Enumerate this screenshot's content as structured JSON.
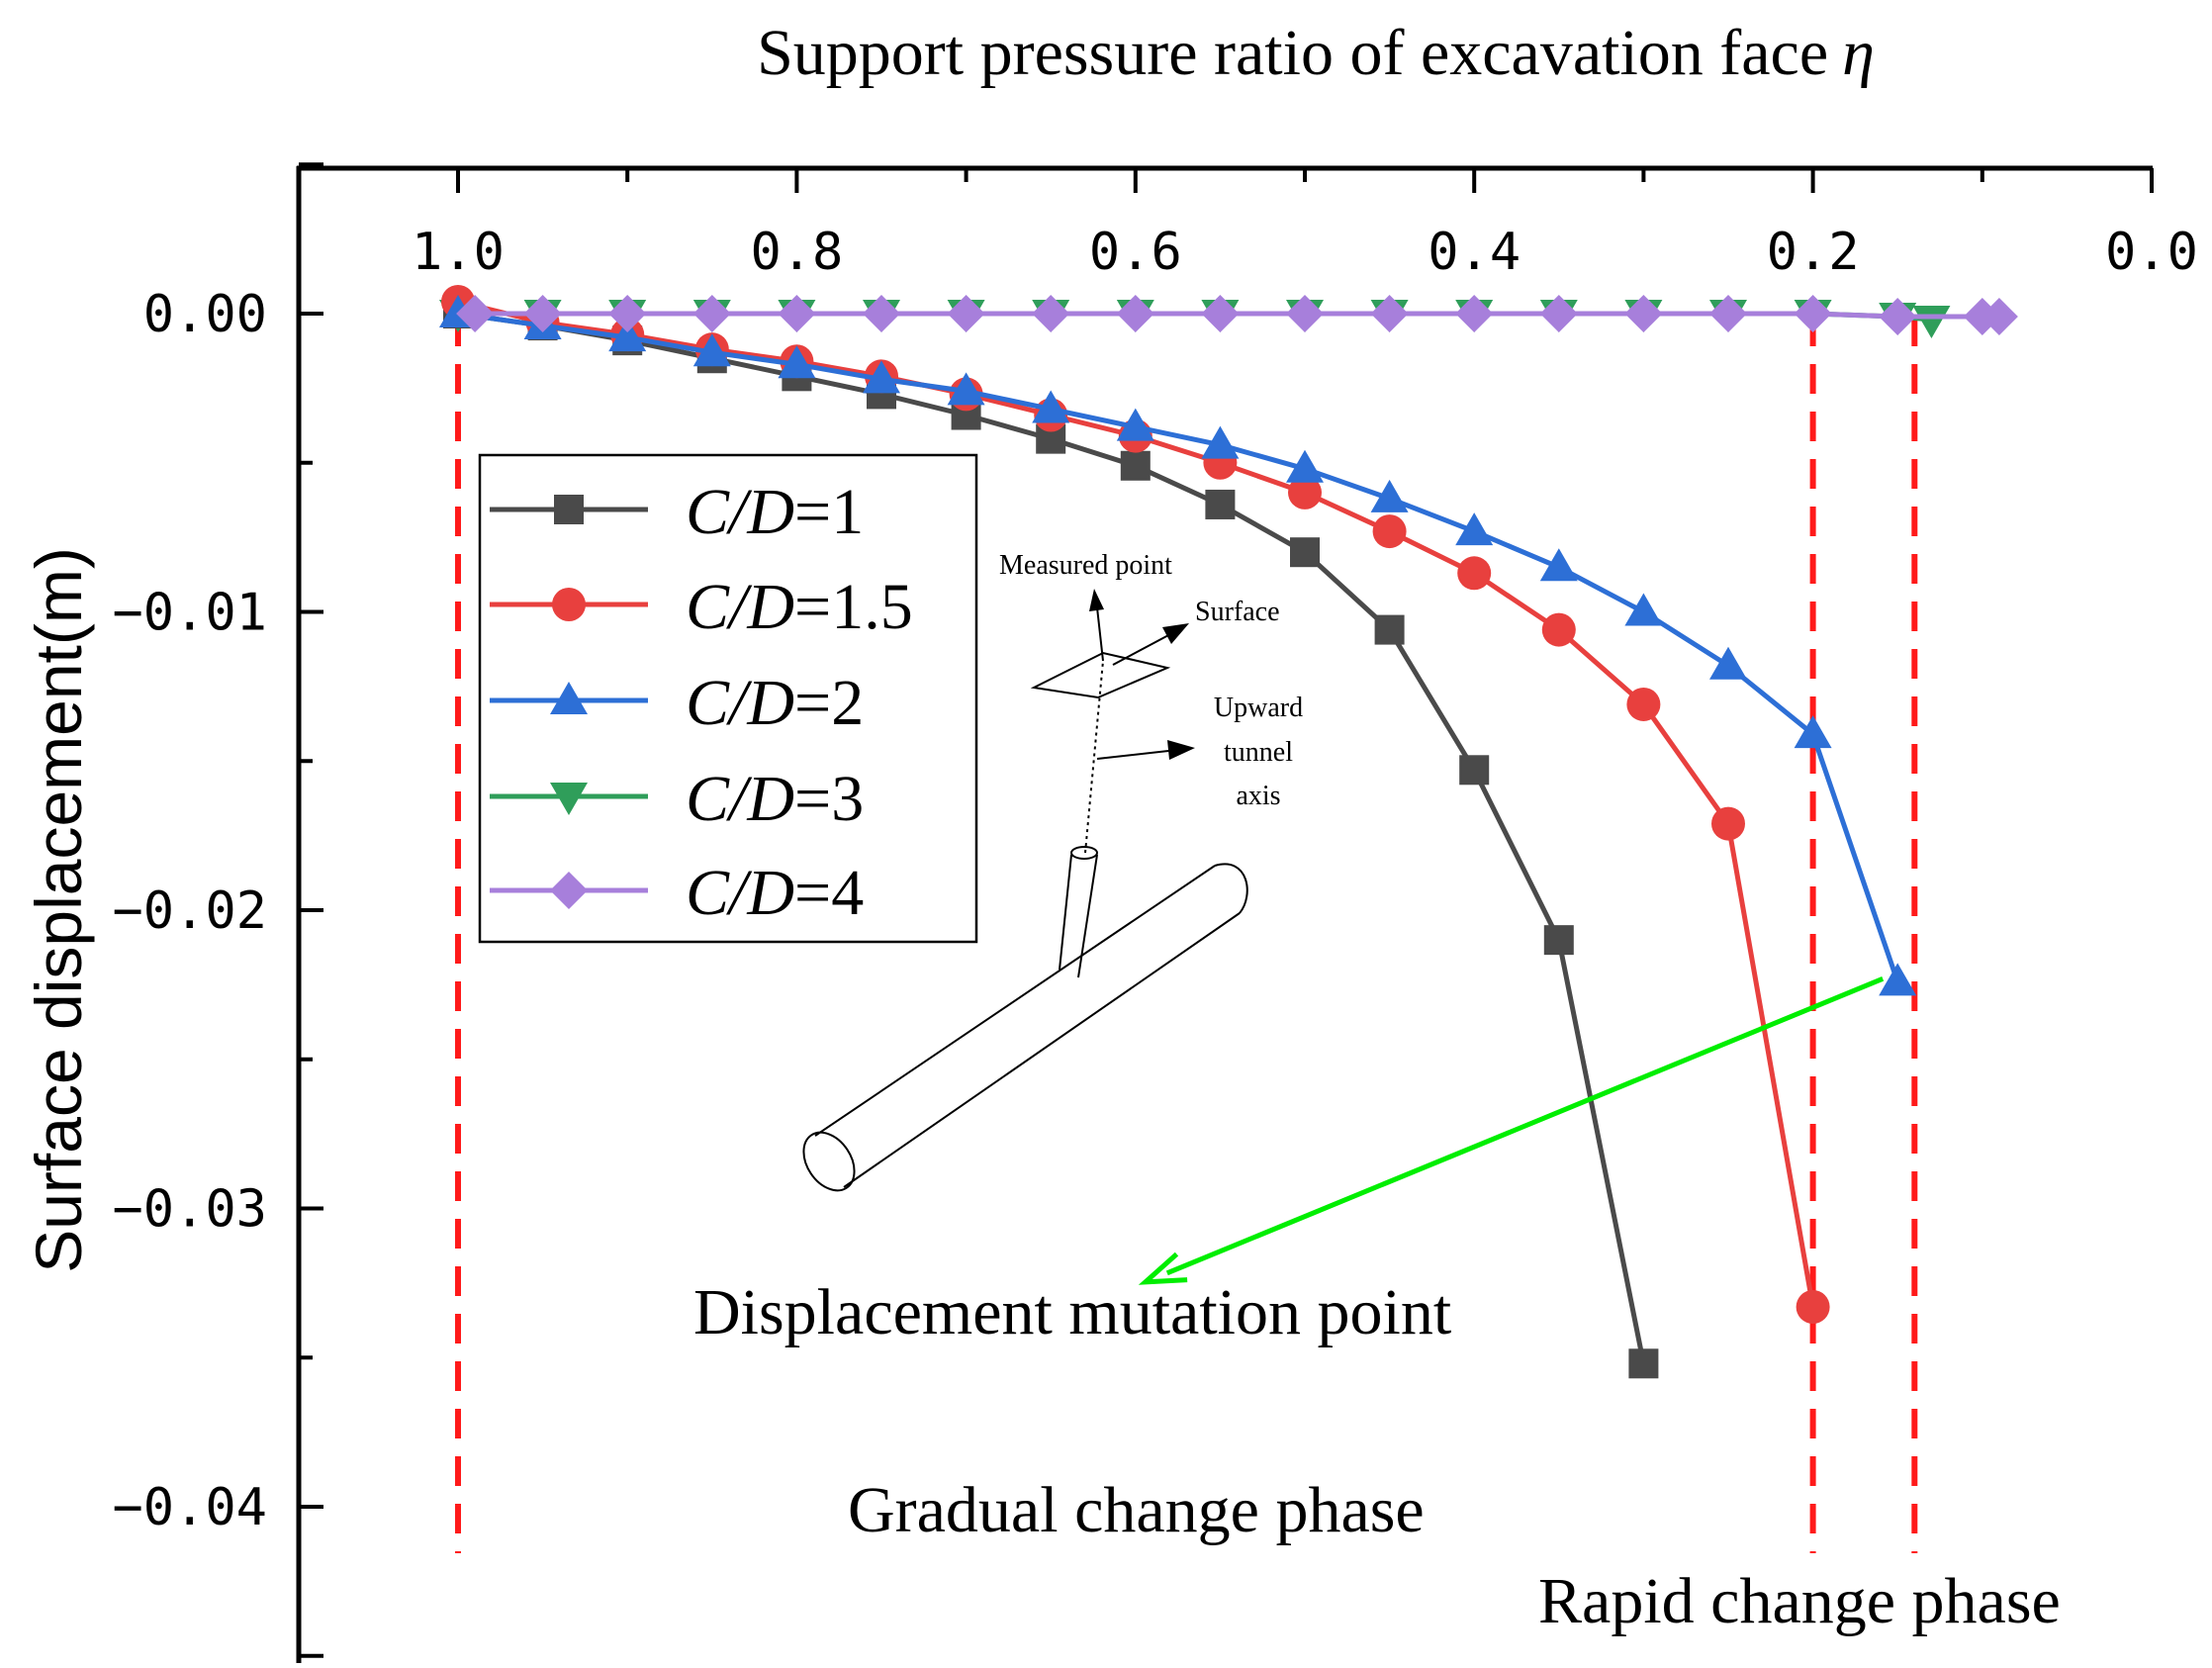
{
  "chart_data": {
    "type": "line",
    "title": "",
    "xlabel": "Support pressure ratio of excavation face",
    "xlabel_symbol": "η",
    "ylabel": "Surface displacement(m)",
    "xlim": [
      1.05,
      0.0
    ],
    "ylim": [
      -0.045,
      0.005
    ],
    "x_axis_position": "top",
    "x_reversed": true,
    "xticks": [
      1.0,
      0.8,
      0.6,
      0.4,
      0.2,
      0.0
    ],
    "xtick_labels": [
      "1.0",
      "0.8",
      "0.6",
      "0.4",
      "0.2",
      "0.0"
    ],
    "yticks": [
      0.0,
      -0.01,
      -0.02,
      -0.03,
      -0.04
    ],
    "ytick_labels": [
      "0.00",
      "−0.01",
      "−0.02",
      "−0.03",
      "−0.04"
    ],
    "legend_position": "upper-left",
    "series": [
      {
        "name": "C/D=1",
        "legend_italic": "C/D",
        "legend_value": "=1",
        "color": "#4a4a4a",
        "marker": "square",
        "x": [
          1.0,
          0.95,
          0.9,
          0.85,
          0.8,
          0.75,
          0.7,
          0.65,
          0.6,
          0.55,
          0.5,
          0.45,
          0.4,
          0.35,
          0.3
        ],
        "y": [
          0.0,
          -0.0004,
          -0.0009,
          -0.0015,
          -0.0021,
          -0.0027,
          -0.0034,
          -0.0042,
          -0.0051,
          -0.0064,
          -0.008,
          -0.0106,
          -0.0153,
          -0.021,
          -0.0352
        ]
      },
      {
        "name": "C/D=1.5",
        "legend_italic": "C/D",
        "legend_value": "=1.5",
        "color": "#e8403e",
        "marker": "circle",
        "x": [
          1.0,
          0.95,
          0.9,
          0.85,
          0.8,
          0.75,
          0.7,
          0.65,
          0.6,
          0.55,
          0.5,
          0.45,
          0.4,
          0.35,
          0.3,
          0.25,
          0.2
        ],
        "y": [
          0.0004,
          -0.0003,
          -0.0007,
          -0.0012,
          -0.0016,
          -0.0021,
          -0.0027,
          -0.0034,
          -0.0041,
          -0.005,
          -0.006,
          -0.0073,
          -0.0087,
          -0.0106,
          -0.0131,
          -0.0171,
          -0.0333
        ]
      },
      {
        "name": "C/D=2",
        "legend_italic": "C/D",
        "legend_value": "=2",
        "color": "#2d6fd6",
        "marker": "triangle-up",
        "x": [
          1.0,
          0.95,
          0.9,
          0.85,
          0.8,
          0.75,
          0.7,
          0.65,
          0.6,
          0.55,
          0.5,
          0.45,
          0.4,
          0.35,
          0.3,
          0.25,
          0.2,
          0.15
        ],
        "y": [
          0.0,
          -0.0004,
          -0.0008,
          -0.0013,
          -0.0017,
          -0.0022,
          -0.0026,
          -0.0032,
          -0.0038,
          -0.0044,
          -0.0052,
          -0.0062,
          -0.0073,
          -0.0085,
          -0.01,
          -0.0118,
          -0.0141,
          -0.0224
        ]
      },
      {
        "name": "C/D=3",
        "legend_italic": "C/D",
        "legend_value": "=3",
        "color": "#2f9e5a",
        "marker": "triangle-down",
        "x": [
          1.0,
          0.95,
          0.9,
          0.85,
          0.8,
          0.75,
          0.7,
          0.65,
          0.6,
          0.55,
          0.5,
          0.45,
          0.4,
          0.35,
          0.3,
          0.25,
          0.2,
          0.15,
          0.13
        ],
        "y": [
          0.0,
          0.0,
          0.0,
          0.0,
          0.0,
          0.0,
          0.0,
          0.0,
          0.0,
          0.0,
          0.0,
          0.0,
          0.0,
          0.0,
          0.0,
          0.0,
          0.0,
          -0.0001,
          -0.0002
        ]
      },
      {
        "name": "C/D=4",
        "legend_italic": "C/D",
        "legend_value": "=4",
        "color": "#a77fdb",
        "marker": "diamond",
        "x": [
          0.99,
          0.95,
          0.9,
          0.85,
          0.8,
          0.75,
          0.7,
          0.65,
          0.6,
          0.55,
          0.5,
          0.45,
          0.4,
          0.35,
          0.3,
          0.25,
          0.2,
          0.15,
          0.1,
          0.09
        ],
        "y": [
          0.0,
          0.0,
          0.0,
          0.0,
          0.0,
          0.0,
          0.0,
          0.0,
          0.0,
          0.0,
          0.0,
          0.0,
          0.0,
          0.0,
          0.0,
          0.0,
          0.0,
          -0.0001,
          -0.0001,
          -0.0001
        ]
      }
    ],
    "reference_lines": {
      "color": "#ff1a1a",
      "style": "dashed",
      "x_values": [
        1.0,
        0.2,
        0.14
      ]
    },
    "annotations": {
      "mutation_arrow": {
        "label": "Displacement mutation point",
        "color": "#00ee00",
        "from_data": [
          0.15,
          -0.0222
        ],
        "to_data": [
          0.6,
          -0.0322
        ]
      },
      "gradual_phase": "Gradual change phase",
      "rapid_phase": "Rapid change phase",
      "inset": {
        "measured_point": "Measured point",
        "surface": "Surface",
        "upward_line1": "Upward",
        "upward_line2": "tunnel",
        "upward_line3": "axis"
      }
    }
  }
}
